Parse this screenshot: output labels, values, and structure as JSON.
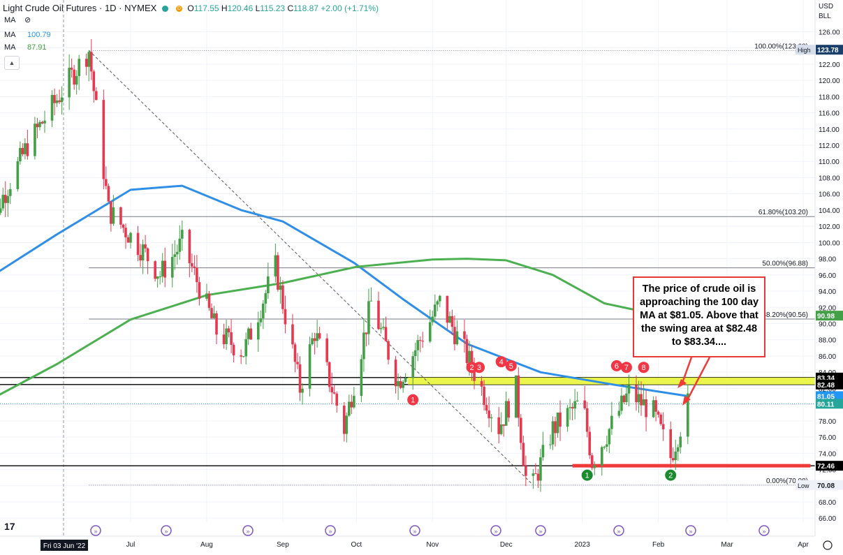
{
  "header": {
    "symbol": "Light Crude Oil Futures · 1D · NYMEX",
    "open_label": "O",
    "open": "117.55",
    "high_label": "H",
    "high": "120.46",
    "low_label": "L",
    "low": "115.23",
    "close_label": "C",
    "close": "118.87",
    "change": "+2.00 (+1.71%)",
    "ma1_label": "MA",
    "ma2_label": "MA",
    "ma3_label": "MA",
    "ma2_value": "100.79",
    "ma3_value": "87.91"
  },
  "axis": {
    "currency": "USD",
    "unit": "BLL",
    "crosshair_date": "Fri 03 Jun '22"
  },
  "annotation": {
    "text": "The price of crude oil is approaching the 100 day MA at $81.05. Above that the swing area at $82.48 to $83.34...."
  },
  "chart_data": {
    "type": "candlestick",
    "title": "Light Crude Oil Futures · 1D · NYMEX",
    "ylim": [
      65.5,
      127.5
    ],
    "y_ticks": [
      66,
      68,
      70,
      72,
      74,
      76,
      78,
      80,
      82,
      84,
      86,
      88,
      90,
      92,
      94,
      96,
      98,
      100,
      102,
      104,
      106,
      108,
      110,
      112,
      114,
      116,
      118,
      120,
      122,
      124,
      126
    ],
    "x_ticks": [
      {
        "label": "Jul",
        "date": "2022-07-01"
      },
      {
        "label": "Aug",
        "date": "2022-08-01"
      },
      {
        "label": "Sep",
        "date": "2022-09-01"
      },
      {
        "label": "Oct",
        "date": "2022-10-01"
      },
      {
        "label": "Nov",
        "date": "2022-11-01"
      },
      {
        "label": "Dec",
        "date": "2022-12-01"
      },
      {
        "label": "2023",
        "date": "2023-01-01"
      },
      {
        "label": "Feb",
        "date": "2023-02-01"
      },
      {
        "label": "Mar",
        "date": "2023-03-01"
      },
      {
        "label": "Apr",
        "date": "2023-04-01"
      }
    ],
    "price_path": [
      [
        "2022-05-01",
        100
      ],
      [
        "2022-05-20",
        112
      ],
      [
        "2022-06-08",
        121
      ],
      [
        "2022-06-14",
        123.7
      ],
      [
        "2022-06-22",
        104
      ],
      [
        "2022-07-06",
        99
      ],
      [
        "2022-07-13",
        96
      ],
      [
        "2022-07-22",
        100
      ],
      [
        "2022-08-05",
        89
      ],
      [
        "2022-08-16",
        86.5
      ],
      [
        "2022-08-29",
        97
      ],
      [
        "2022-09-08",
        82
      ],
      [
        "2022-09-14",
        89
      ],
      [
        "2022-09-26",
        77
      ],
      [
        "2022-10-07",
        92.6
      ],
      [
        "2022-10-18",
        82.8
      ],
      [
        "2022-11-04",
        92.6
      ],
      [
        "2022-11-15",
        86
      ],
      [
        "2022-11-28",
        77.2
      ],
      [
        "2022-12-05",
        82
      ],
      [
        "2022-12-09",
        71
      ],
      [
        "2022-12-12",
        70.08
      ],
      [
        "2022-12-20",
        77
      ],
      [
        "2023-01-01",
        80.5
      ],
      [
        "2023-01-05",
        73
      ],
      [
        "2023-01-20",
        81.5
      ],
      [
        "2023-01-30",
        79
      ],
      [
        "2023-02-06",
        73.5
      ],
      [
        "2023-02-13",
        80.1
      ]
    ],
    "series": [
      {
        "name": "MA",
        "values": [
          [
            "2022-05-01",
            95
          ],
          [
            "2022-06-01",
            101
          ],
          [
            "2022-07-01",
            106.5
          ],
          [
            "2022-07-22",
            107
          ],
          [
            "2022-08-15",
            104
          ],
          [
            "2022-09-01",
            102.6
          ],
          [
            "2022-09-30",
            97.5
          ],
          [
            "2022-10-20",
            93
          ],
          [
            "2022-11-15",
            87.5
          ],
          [
            "2022-12-15",
            84
          ],
          [
            "2023-01-15",
            82.4
          ],
          [
            "2023-02-13",
            81.05
          ]
        ]
      },
      {
        "name": "MA",
        "values": [
          [
            "2022-05-01",
            80
          ],
          [
            "2022-06-01",
            85
          ],
          [
            "2022-07-01",
            90.5
          ],
          [
            "2022-08-01",
            93.5
          ],
          [
            "2022-09-01",
            95
          ],
          [
            "2022-10-01",
            97
          ],
          [
            "2022-11-01",
            97.9
          ],
          [
            "2022-11-15",
            98
          ],
          [
            "2022-12-01",
            97.8
          ],
          [
            "2022-12-20",
            96
          ],
          [
            "2023-01-10",
            92.5
          ],
          [
            "2023-01-30",
            91.2
          ]
        ]
      }
    ],
    "fib_levels": [
      {
        "label": "100.00%(123.68)",
        "value": 123.68
      },
      {
        "label": "61.80%(103.20)",
        "value": 103.2
      },
      {
        "label": "50.00%(96.88)",
        "value": 96.88
      },
      {
        "label": "38.20%(90.56)",
        "value": 90.56
      },
      {
        "label": "0.00%(70.08)",
        "value": 70.08
      }
    ],
    "horizontal_lines": [
      83.34,
      82.48,
      72.46
    ],
    "swing_zone": [
      82.48,
      83.34
    ],
    "price_tags": [
      {
        "value": 123.78,
        "label": "123.78",
        "color": "#1a3f6b",
        "side_label": "High"
      },
      {
        "value": 90.98,
        "label": "90.98",
        "color": "#43a047"
      },
      {
        "value": 83.34,
        "label": "83.34",
        "color": "#000000"
      },
      {
        "value": 82.48,
        "label": "82.48",
        "color": "#000000"
      },
      {
        "value": 81.05,
        "label": "81.05",
        "color": "#2196f3"
      },
      {
        "value": 80.11,
        "label": "80.11",
        "color": "#26a69a"
      },
      {
        "value": 72.46,
        "label": "72.46",
        "color": "#000000"
      },
      {
        "value": 70.08,
        "label": "70.08",
        "color": "#eef1f7",
        "side_label": "Low"
      }
    ],
    "markers_red": [
      {
        "label": "1",
        "date": "2022-10-24",
        "value": 80.6
      },
      {
        "label": "2",
        "date": "2022-11-17",
        "value": 84.6
      },
      {
        "label": "3",
        "date": "2022-11-20",
        "value": 84.6
      },
      {
        "label": "4",
        "date": "2022-11-29",
        "value": 85.3
      },
      {
        "label": "5",
        "date": "2022-12-03",
        "value": 84.8
      },
      {
        "label": "6",
        "date": "2023-01-15",
        "value": 84.8
      },
      {
        "label": "7",
        "date": "2023-01-19",
        "value": 84.6
      },
      {
        "label": "8",
        "date": "2023-01-26",
        "value": 84.6
      }
    ],
    "markers_green": [
      {
        "label": "1",
        "date": "2023-01-03",
        "value": 71.3
      },
      {
        "label": "2",
        "date": "2023-02-06",
        "value": 71.3
      }
    ],
    "support_segment": {
      "value": 72.46,
      "from": "2022-12-28",
      "to": "2023-04-04"
    }
  }
}
